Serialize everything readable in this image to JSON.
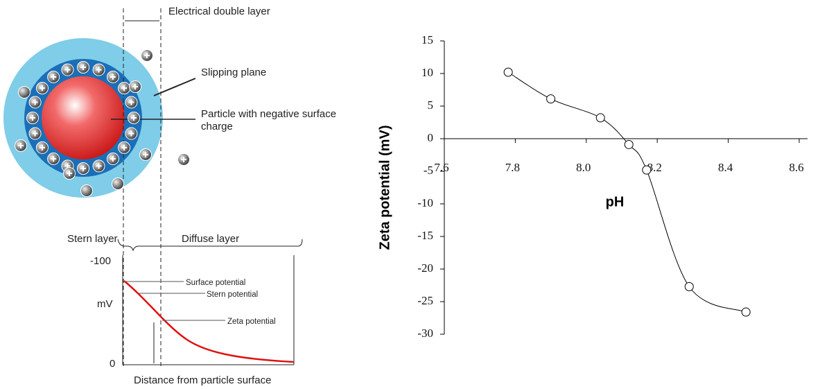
{
  "diagram": {
    "electrical_double_layer": "Electrical double layer",
    "slipping_plane": "Slipping plane",
    "particle": "Particle with negative surface charge",
    "stern_layer": "Stern layer",
    "diffuse_layer": "Diffuse layer",
    "y_top": "-100",
    "y_unit": "mV",
    "y_bottom": "0",
    "surface_potential": "Surface potential",
    "stern_potential": "Stern potential",
    "zeta_potential": "Zeta potential",
    "x_label": "Distance from particle surface"
  },
  "chart_data": {
    "type": "line",
    "x_label": "pH",
    "y_label": "Zeta potential (mV)",
    "x": [
      7.78,
      7.9,
      8.04,
      8.12,
      8.17,
      8.29,
      8.45
    ],
    "series": [
      {
        "color": "#000000",
        "values": [
          10.2,
          6.1,
          3.2,
          -0.9,
          -4.8,
          -22.7,
          -26.6
        ]
      }
    ],
    "xlim": [
      7.6,
      8.6
    ],
    "xticks": [
      7.6,
      7.8,
      {
        "value": 8,
        "label": "8.0"
      },
      8.2,
      8.4,
      8.6
    ],
    "ylim": [
      -30,
      15
    ],
    "yticks": [
      15,
      10,
      5,
      0,
      -5,
      -10,
      -15,
      -20,
      -25,
      -30
    ]
  }
}
